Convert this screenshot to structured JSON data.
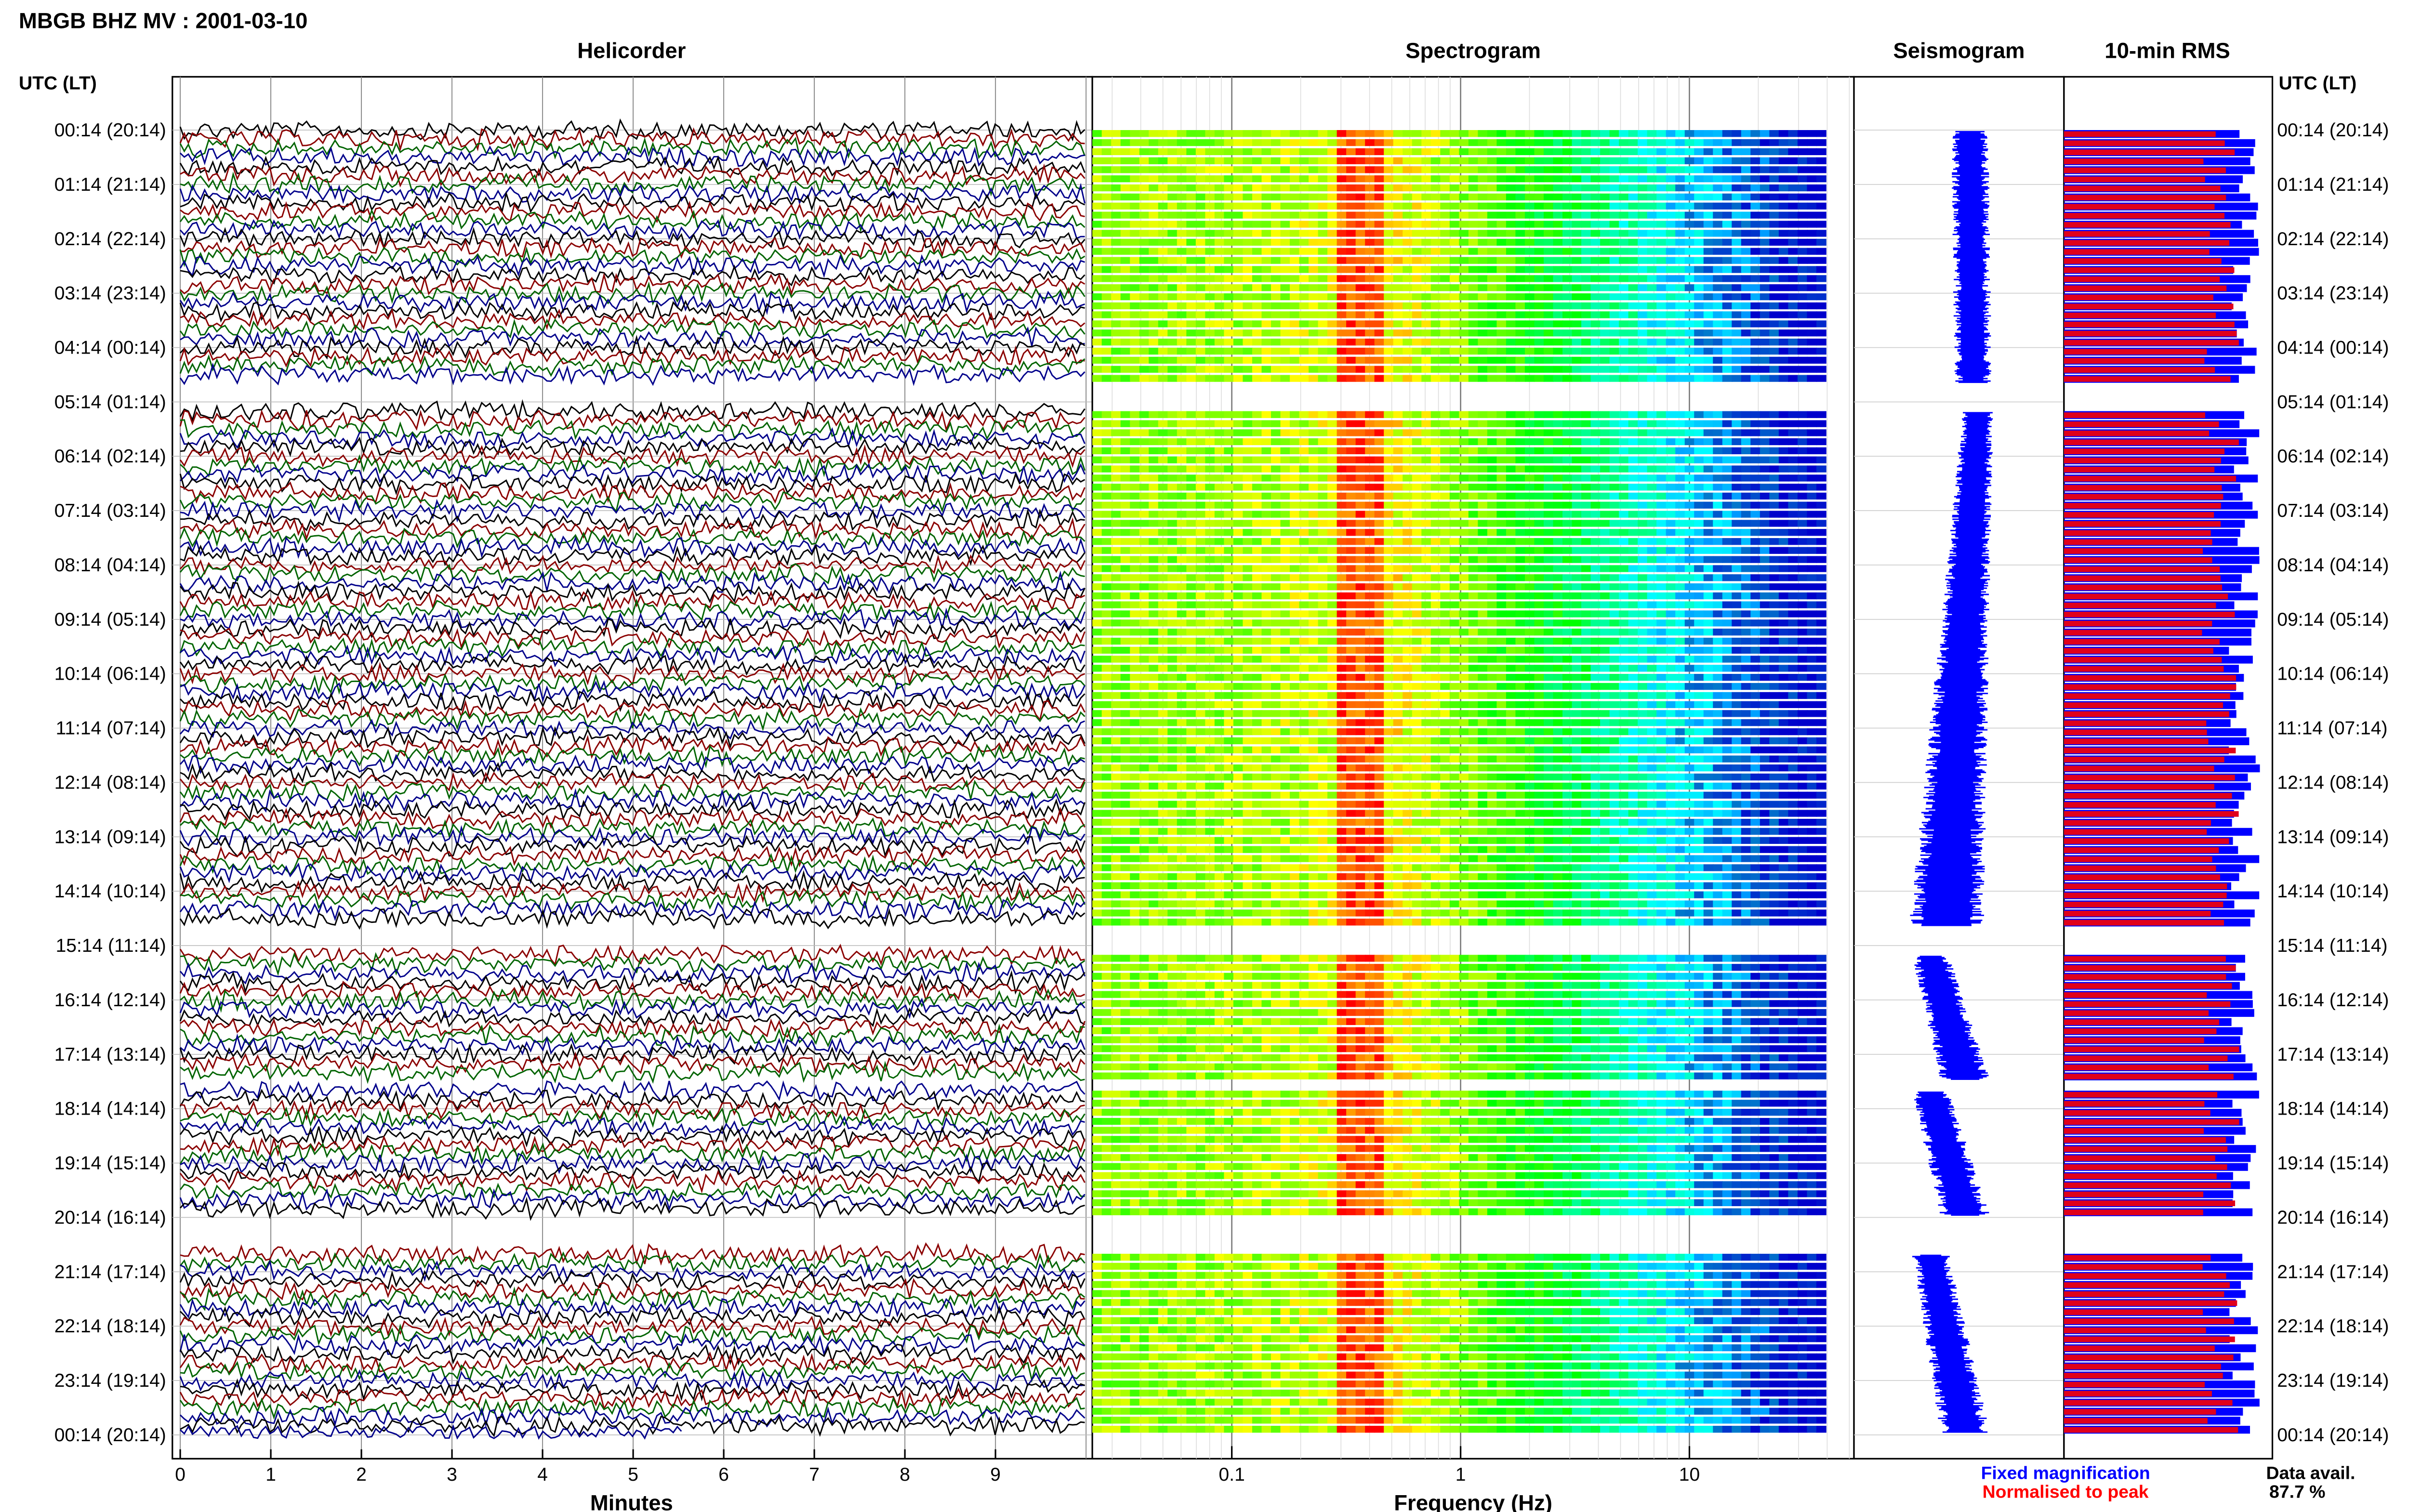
{
  "header": {
    "title": "MBGB BHZ MV : 2001-03-10"
  },
  "panels": {
    "helicorder": "Helicorder",
    "spectrogram": "Spectrogram",
    "seismogram": "Seismogram",
    "rms": "10-min RMS"
  },
  "axis_labels": {
    "time_left": "UTC (LT)",
    "time_right": "UTC (LT)",
    "helicorder_x": "Minutes",
    "spectrogram_x": "Frequency (Hz)"
  },
  "time_ticks": [
    "00:14 (20:14)",
    "01:14 (21:14)",
    "02:14 (22:14)",
    "03:14 (23:14)",
    "04:14 (00:14)",
    "05:14 (01:14)",
    "06:14 (02:14)",
    "07:14 (03:14)",
    "08:14 (04:14)",
    "09:14 (05:14)",
    "10:14 (06:14)",
    "11:14 (07:14)",
    "12:14 (08:14)",
    "13:14 (09:14)",
    "14:14 (10:14)",
    "15:14 (11:14)",
    "16:14 (12:14)",
    "17:14 (13:14)",
    "18:14 (14:14)",
    "19:14 (15:14)",
    "20:14 (16:14)",
    "21:14 (17:14)",
    "22:14 (18:14)",
    "23:14 (19:14)",
    "00:14 (20:14)"
  ],
  "minute_ticks": [
    "0",
    "1",
    "2",
    "3",
    "4",
    "5",
    "6",
    "7",
    "8",
    "9"
  ],
  "freq_ticks": [
    "0.1",
    "1",
    "10"
  ],
  "legend": {
    "fixed": "Fixed magnification",
    "normalised": "Normalised to peak",
    "fixed_color": "#0000ff",
    "normalised_color": "#ff0000"
  },
  "availability": {
    "label": "Data avail.",
    "value": "87.7 %"
  },
  "colors": {
    "trace_cycle": [
      "#000000",
      "#8b0000",
      "#006400",
      "#00008b"
    ],
    "seismogram": "#0000ff",
    "rms_fixed": "#0000ff",
    "rms_normalised": "#e0001b"
  },
  "chart_data": {
    "type": "heatmap",
    "helicorder": {
      "x_unit": "minutes",
      "xlim": [
        0,
        10
      ],
      "rows_per_hour": 6,
      "data_segments_hours_after_00_14": [
        [
          0,
          4.67
        ],
        [
          5.17,
          14.67
        ],
        [
          15.17,
          17.5
        ],
        [
          17.67,
          20.0
        ],
        [
          20.67,
          24.0
        ]
      ]
    },
    "spectrogram": {
      "x_scale": "log",
      "xlim_hz": [
        0.03,
        40
      ],
      "ticks_hz": [
        0.1,
        1,
        10
      ],
      "peak_band_hz": [
        0.3,
        0.45
      ]
    },
    "rms": {
      "series": [
        {
          "name": "Fixed magnification"
        },
        {
          "name": "Normalised to peak"
        }
      ]
    },
    "data_availability_percent": 87.7
  }
}
